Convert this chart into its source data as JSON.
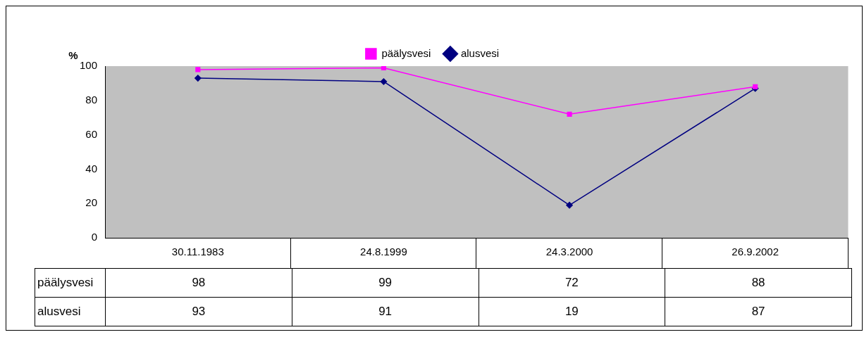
{
  "chart_data": {
    "type": "line",
    "ylabel": "%",
    "categories": [
      "30.11.1983",
      "24.8.1999",
      "24.3.2000",
      "26.9.2002"
    ],
    "series": [
      {
        "name": "päälysvesi",
        "color": "#ff00ff",
        "marker": "square",
        "values": [
          98,
          99,
          72,
          88
        ]
      },
      {
        "name": "alusvesi",
        "color": "#000080",
        "marker": "diamond",
        "values": [
          93,
          91,
          19,
          87
        ]
      }
    ],
    "ylim": [
      0,
      100
    ],
    "yticks": [
      0,
      20,
      40,
      60,
      80,
      100
    ],
    "grid": false,
    "legend": "top",
    "data_labels": true
  }
}
